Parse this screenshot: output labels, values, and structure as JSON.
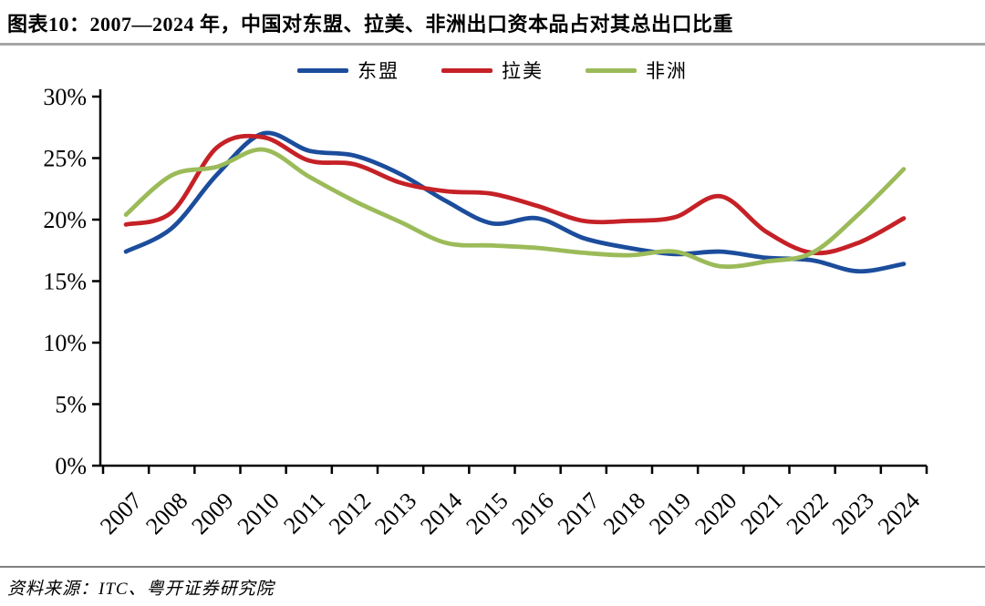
{
  "header": {
    "title": "图表10：2007—2024 年，中国对东盟、拉美、非洲出口资本品占对其总出口比重"
  },
  "footer": {
    "source": "资料来源：ITC、粤开证券研究院"
  },
  "chart_data": {
    "type": "line",
    "title": "2007—2024年，中国对东盟、拉美、非洲出口资本品占对其总出口比重",
    "categories": [
      "2007",
      "2008",
      "2009",
      "2010",
      "2011",
      "2012",
      "2013",
      "2014",
      "2015",
      "2016",
      "2017",
      "2018",
      "2019",
      "2020",
      "2021",
      "2022",
      "2023",
      "2024"
    ],
    "series": [
      {
        "name": "东盟",
        "color": "#1c4d9c",
        "values": [
          17.4,
          19.3,
          23.7,
          27.0,
          25.6,
          25.2,
          23.7,
          21.5,
          19.7,
          20.1,
          18.5,
          17.7,
          17.2,
          17.4,
          16.9,
          16.7,
          15.8,
          16.4
        ]
      },
      {
        "name": "拉美",
        "color": "#c52127",
        "values": [
          19.6,
          20.6,
          25.9,
          26.7,
          24.8,
          24.5,
          23.0,
          22.3,
          22.1,
          21.1,
          19.9,
          19.9,
          20.2,
          21.9,
          19.0,
          17.3,
          18.1,
          20.1
        ]
      },
      {
        "name": "非洲",
        "color": "#9bbb59",
        "values": [
          20.4,
          23.6,
          24.3,
          25.7,
          23.5,
          21.5,
          19.8,
          18.1,
          17.9,
          17.7,
          17.3,
          17.1,
          17.4,
          16.2,
          16.6,
          17.3,
          20.4,
          24.1
        ]
      }
    ],
    "ylabel": "",
    "xlabel": "",
    "ylim": [
      0,
      30
    ],
    "y_step": 5,
    "y_suffix": "%",
    "grid": false,
    "smooth": true,
    "legend_position": "top",
    "axis_color": "#000000"
  }
}
